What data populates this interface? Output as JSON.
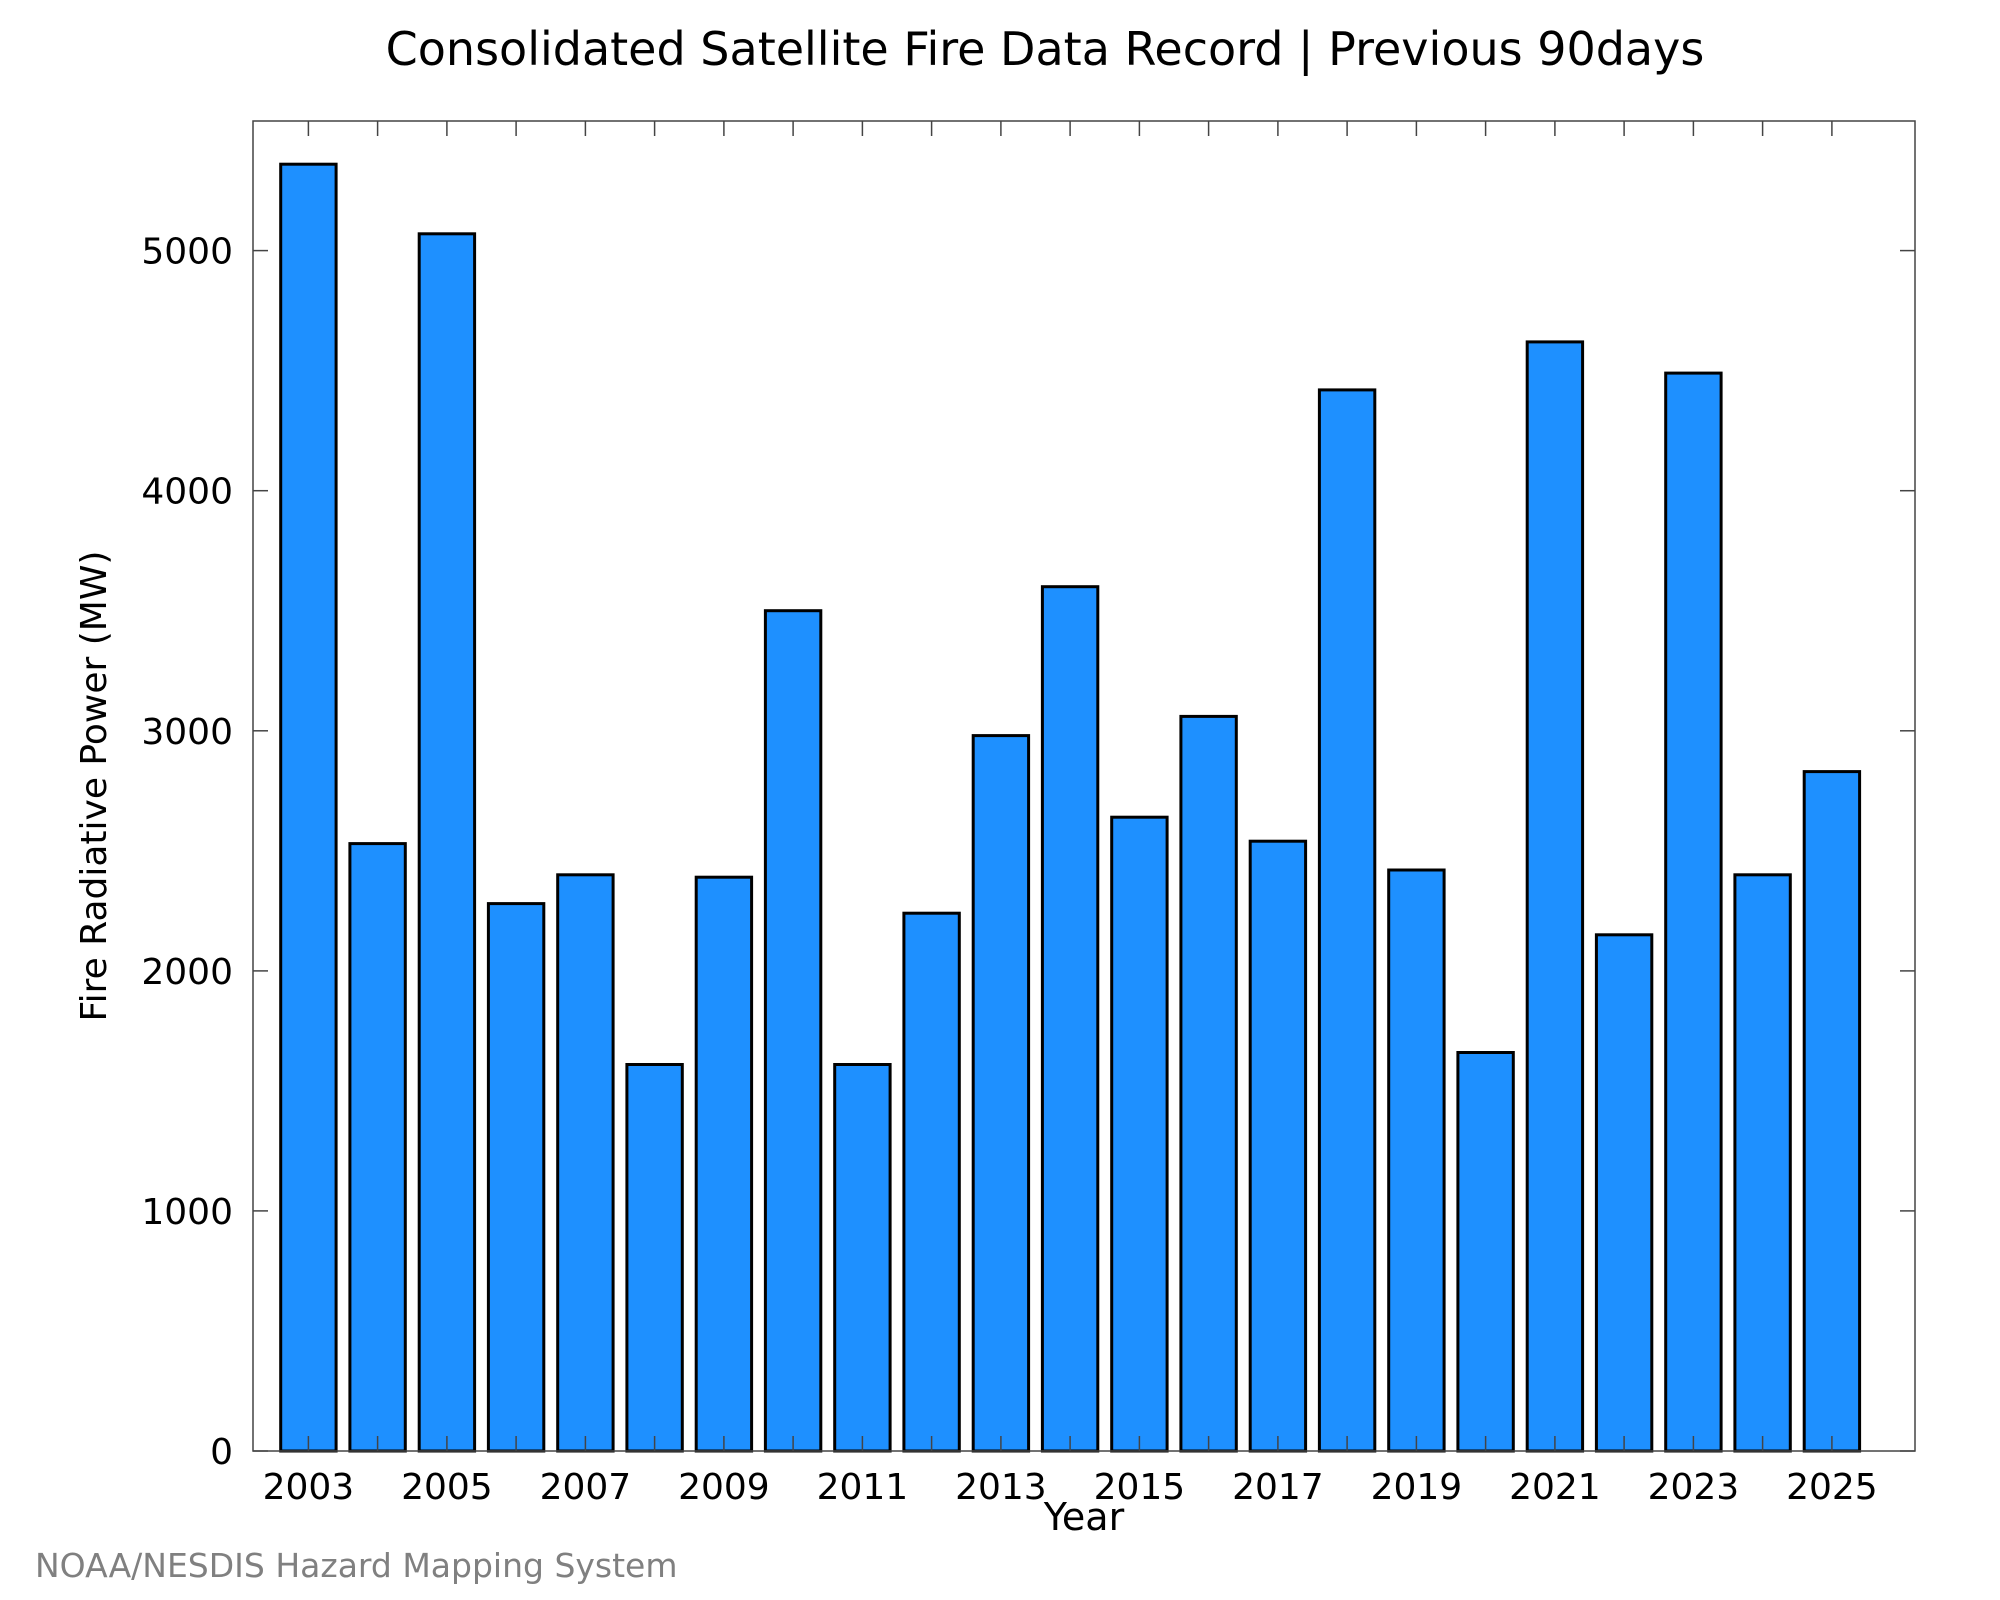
{
  "chart_data": {
    "type": "bar",
    "title": "Consolidated Satellite Fire Data Record | Previous 90days",
    "xlabel": "Year",
    "ylabel": "Fire Radiative Power (MW)",
    "categories": [
      2003,
      2004,
      2005,
      2006,
      2007,
      2008,
      2009,
      2010,
      2011,
      2012,
      2013,
      2014,
      2015,
      2016,
      2017,
      2018,
      2019,
      2020,
      2021,
      2022,
      2023,
      2024,
      2025
    ],
    "values": [
      5360,
      2530,
      5070,
      2280,
      2400,
      1610,
      2390,
      3500,
      1610,
      2240,
      2980,
      3600,
      2640,
      3060,
      2540,
      4420,
      2420,
      1660,
      4620,
      2150,
      4490,
      2400,
      2830
    ],
    "xlim": [
      2002.2,
      2026.2
    ],
    "ylim": [
      0,
      5540
    ],
    "x_ticks": [
      2003,
      2005,
      2007,
      2009,
      2011,
      2013,
      2015,
      2017,
      2019,
      2021,
      2023,
      2025
    ],
    "x_minor_ticks": [
      2004,
      2006,
      2008,
      2010,
      2012,
      2014,
      2016,
      2018,
      2020,
      2022,
      2024
    ],
    "y_ticks": [
      0,
      1000,
      2000,
      3000,
      4000,
      5000
    ],
    "grid": false,
    "legend": "none",
    "bar_color": "#1E90FF",
    "bar_edge_color": "#000000"
  },
  "footer": {
    "source": "NOAA/NESDIS Hazard Mapping System",
    "source_color": "#808080"
  }
}
